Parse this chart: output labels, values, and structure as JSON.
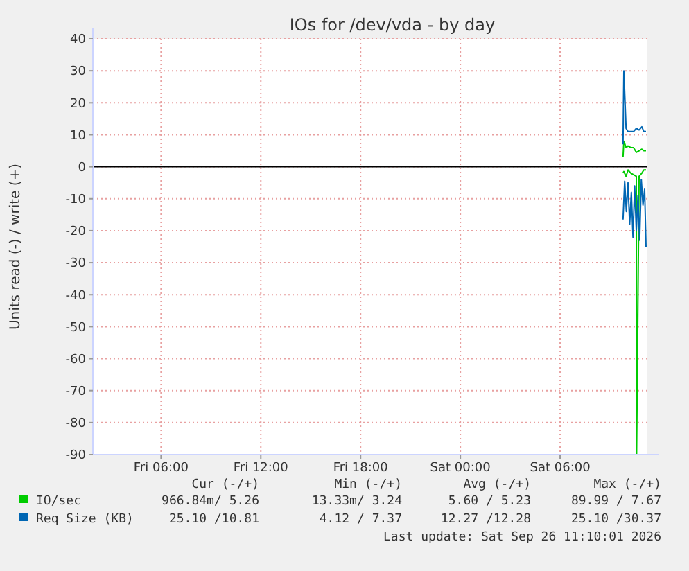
{
  "chart_data": {
    "type": "line",
    "title": "IOs for /dev/vda - by day",
    "ylabel": "Units read (-) / write (+)",
    "xlim": [
      "2026-09-25T01:54",
      "2026-09-26T11:15"
    ],
    "xticks": [
      {
        "value": "2026-09-25T06:00",
        "label": "Fri 06:00"
      },
      {
        "value": "2026-09-25T12:00",
        "label": "Fri 12:00"
      },
      {
        "value": "2026-09-25T18:00",
        "label": "Fri 18:00"
      },
      {
        "value": "2026-09-26T00:00",
        "label": "Sat 00:00"
      },
      {
        "value": "2026-09-26T06:00",
        "label": "Sat 06:00"
      }
    ],
    "ylim": [
      -90,
      40
    ],
    "yticks": [
      -90,
      -80,
      -70,
      -60,
      -50,
      -40,
      -30,
      -20,
      -10,
      0,
      10,
      20,
      30,
      40
    ],
    "grid": true,
    "legend": "bottom",
    "ref_lines": [
      {
        "axis": "y",
        "value": 0,
        "color": "#000000"
      }
    ],
    "series": [
      {
        "name": "IO/sec",
        "color": "#00cc00",
        "x": [
          "2026-09-26T09:47",
          "2026-09-26T09:50",
          "2026-09-26T09:58",
          "2026-09-26T10:05",
          "2026-09-26T10:15",
          "2026-09-26T10:25",
          "2026-09-26T10:35",
          "2026-09-26T10:45",
          "2026-09-26T10:55",
          "2026-09-26T11:02",
          "2026-09-26T11:10"
        ],
        "values": [
          3,
          8,
          6,
          6.5,
          6,
          6,
          4.5,
          5,
          5.5,
          5,
          5
        ]
      },
      {
        "color": "#00cc00",
        "x": [
          "2026-09-26T09:47",
          "2026-09-26T09:50",
          "2026-09-26T09:58",
          "2026-09-26T10:05",
          "2026-09-26T10:15",
          "2026-09-26T10:25",
          "2026-09-26T10:35",
          "2026-09-26T10:36",
          "2026-09-26T10:45",
          "2026-09-26T10:55",
          "2026-09-26T11:02",
          "2026-09-26T11:10"
        ],
        "values": [
          -2,
          -1.5,
          -3,
          -1,
          -2,
          -2.5,
          -3,
          -90,
          -3,
          -2,
          -1,
          -1
        ]
      },
      {
        "name": "Req Size (KB)",
        "color": "#0066b3",
        "x": [
          "2026-09-26T09:47",
          "2026-09-26T09:50",
          "2026-09-26T09:58",
          "2026-09-26T10:05",
          "2026-09-26T10:15",
          "2026-09-26T10:25",
          "2026-09-26T10:35",
          "2026-09-26T10:45",
          "2026-09-26T10:55",
          "2026-09-26T11:02",
          "2026-09-26T11:10"
        ],
        "values": [
          7,
          30,
          12,
          11,
          11,
          11,
          12,
          11.5,
          12.5,
          11,
          11
        ]
      },
      {
        "color": "#0066b3",
        "x": [
          "2026-09-26T09:47",
          "2026-09-26T09:53",
          "2026-09-26T09:59",
          "2026-09-26T10:05",
          "2026-09-26T10:11",
          "2026-09-26T10:17",
          "2026-09-26T10:23",
          "2026-09-26T10:29",
          "2026-09-26T10:35",
          "2026-09-26T10:41",
          "2026-09-26T10:47",
          "2026-09-26T10:53",
          "2026-09-26T10:59",
          "2026-09-26T11:05",
          "2026-09-26T11:10"
        ],
        "values": [
          -16.5,
          -4.5,
          -14,
          -5,
          -18,
          -8,
          -22,
          -6,
          -20,
          -9,
          -23,
          -4,
          -12,
          -7,
          -25
        ]
      }
    ],
    "annotations": [
      "Cur (-/+)",
      "Min (-/+)",
      "Avg (-/+)",
      "Max (-/+)",
      "966.84m/ 5.26",
      "13.33m/ 3.24",
      "5.60 / 5.23",
      "89.99 / 7.67",
      "25.10 /10.81",
      "4.12 / 7.37",
      "12.27 /12.28",
      "25.10 /30.37",
      "Last update: Sat Sep 26 11:10:01 2026"
    ]
  }
}
